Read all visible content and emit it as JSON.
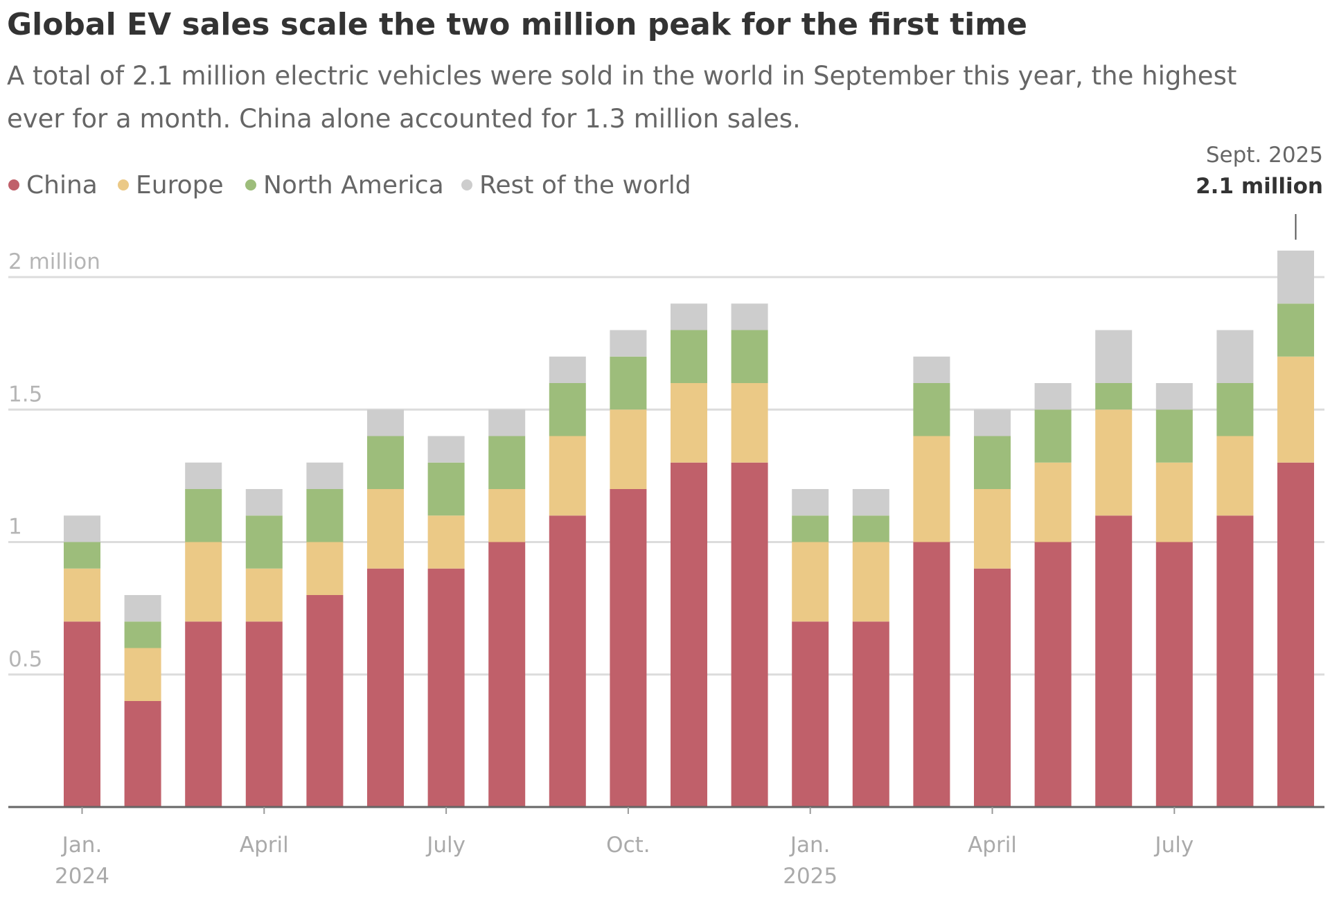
{
  "chart_data": {
    "type": "bar",
    "stacked": true,
    "title": "Global EV sales scale the two million peak for the first time",
    "subtitle_lines": [
      "A total of 2.1 million electric vehicles were sold in the world in September this year, the highest",
      "ever for a month. China alone accounted for 1.3 million sales."
    ],
    "legend_position": "top-left",
    "categories": [
      "Jan 2024",
      "Feb 2024",
      "Mar 2024",
      "Apr 2024",
      "May 2024",
      "Jun 2024",
      "Jul 2024",
      "Aug 2024",
      "Sep 2024",
      "Oct 2024",
      "Nov 2024",
      "Dec 2024",
      "Jan 2025",
      "Feb 2025",
      "Mar 2025",
      "Apr 2025",
      "May 2025",
      "Jun 2025",
      "Jul 2025",
      "Aug 2025",
      "Sep 2025"
    ],
    "series": [
      {
        "name": "China",
        "color": "#c0606a",
        "values": [
          0.7,
          0.4,
          0.7,
          0.7,
          0.8,
          0.9,
          0.9,
          1.0,
          1.1,
          1.2,
          1.3,
          1.3,
          0.7,
          0.7,
          1.0,
          0.9,
          1.0,
          1.1,
          1.0,
          1.1,
          1.3
        ]
      },
      {
        "name": "Europe",
        "color": "#ebc986",
        "values": [
          0.2,
          0.2,
          0.3,
          0.2,
          0.2,
          0.3,
          0.2,
          0.2,
          0.3,
          0.3,
          0.3,
          0.3,
          0.3,
          0.3,
          0.4,
          0.3,
          0.3,
          0.4,
          0.3,
          0.3,
          0.4
        ]
      },
      {
        "name": "North America",
        "color": "#9dbd7b",
        "values": [
          0.1,
          0.1,
          0.2,
          0.2,
          0.2,
          0.2,
          0.2,
          0.2,
          0.2,
          0.2,
          0.2,
          0.2,
          0.1,
          0.1,
          0.2,
          0.2,
          0.2,
          0.1,
          0.2,
          0.2,
          0.2
        ]
      },
      {
        "name": "Rest of the world",
        "color": "#cdcdcd",
        "values": [
          0.1,
          0.1,
          0.1,
          0.1,
          0.1,
          0.1,
          0.1,
          0.1,
          0.1,
          0.1,
          0.1,
          0.1,
          0.1,
          0.1,
          0.1,
          0.1,
          0.1,
          0.2,
          0.1,
          0.2,
          0.2
        ]
      }
    ],
    "ylim": [
      0,
      2.1
    ],
    "y_unit": "million",
    "grid": true,
    "y_ticks": [
      {
        "value": 0.5,
        "label": "0.5"
      },
      {
        "value": 1,
        "label": "1"
      },
      {
        "value": 1.5,
        "label": "1.5"
      },
      {
        "value": 2,
        "label": "2 million"
      }
    ],
    "x_ticks": [
      {
        "index": 0,
        "label": "Jan.",
        "label2": "2024"
      },
      {
        "index": 3,
        "label": "April",
        "label2": ""
      },
      {
        "index": 6,
        "label": "July",
        "label2": ""
      },
      {
        "index": 9,
        "label": "Oct.",
        "label2": ""
      },
      {
        "index": 12,
        "label": "Jan.",
        "label2": "2025"
      },
      {
        "index": 15,
        "label": "April",
        "label2": ""
      },
      {
        "index": 18,
        "label": "July",
        "label2": ""
      }
    ],
    "annotation": {
      "index": 20,
      "label": "Sept. 2025",
      "value_label": "2.1 million"
    }
  }
}
